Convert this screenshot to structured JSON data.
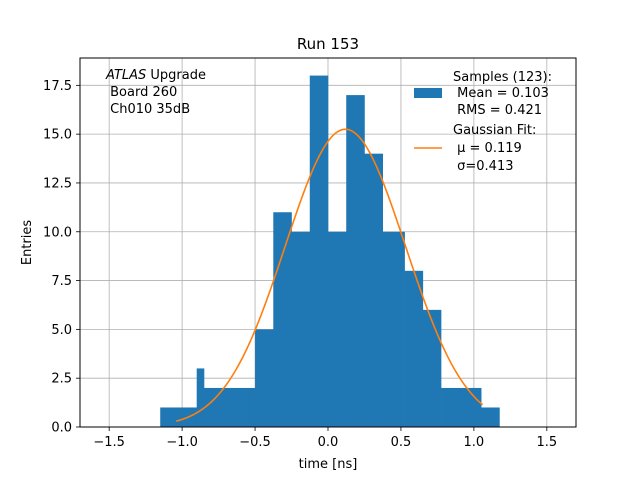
{
  "chart_data": {
    "type": "bar",
    "title": "Run 153",
    "xlabel": "time [ns]",
    "ylabel": "Entries",
    "xlim": [
      -1.7,
      1.7
    ],
    "ylim": [
      0,
      18.9
    ],
    "grid": true,
    "xticks": [
      -1.5,
      -1.0,
      -0.5,
      0.0,
      0.5,
      1.0,
      1.5
    ],
    "xtick_labels": [
      "−1.5",
      "−1.0",
      "−0.5",
      "0.0",
      "0.5",
      "1.0",
      "1.5"
    ],
    "yticks": [
      0.0,
      2.5,
      5.0,
      7.5,
      10.0,
      12.5,
      15.0,
      17.5
    ],
    "ytick_labels": [
      "0.0",
      "2.5",
      "5.0",
      "7.5",
      "10.0",
      "12.5",
      "15.0",
      "17.5"
    ],
    "histogram": {
      "bin_edges": [
        -1.15,
        -1.025,
        -0.9,
        -0.85,
        -0.775,
        -0.5,
        -0.375,
        -0.25,
        -0.125,
        -0.0,
        0.125,
        0.25,
        0.375,
        0.525,
        0.65,
        0.775,
        0.9,
        1.05,
        1.175
      ],
      "counts": [
        1,
        1,
        3,
        2,
        2,
        5,
        11,
        10,
        18,
        10,
        17,
        14,
        10,
        8,
        6,
        2,
        2,
        1
      ],
      "color": "#1f77b4"
    },
    "fit": {
      "type": "gaussian",
      "mu": 0.119,
      "sigma": 0.413,
      "amplitude": 15.25,
      "x_range": [
        -1.04,
        1.06
      ],
      "color": "#ff7f0e"
    },
    "legend": {
      "placement": "top-right",
      "entries": [
        {
          "kind": "patch",
          "lines": [
            "Samples (123):",
            " Mean = 0.103",
            " RMS = 0.421"
          ]
        },
        {
          "kind": "line",
          "lines": [
            "Gaussian Fit:",
            " μ = 0.119",
            " σ=0.413"
          ]
        }
      ]
    },
    "annotation": {
      "placement": "top-left",
      "line1_italic": "ATLAS",
      "line1_rest": " Upgrade",
      "line2": " Board 260",
      "line3": " Ch010 35dB"
    }
  }
}
